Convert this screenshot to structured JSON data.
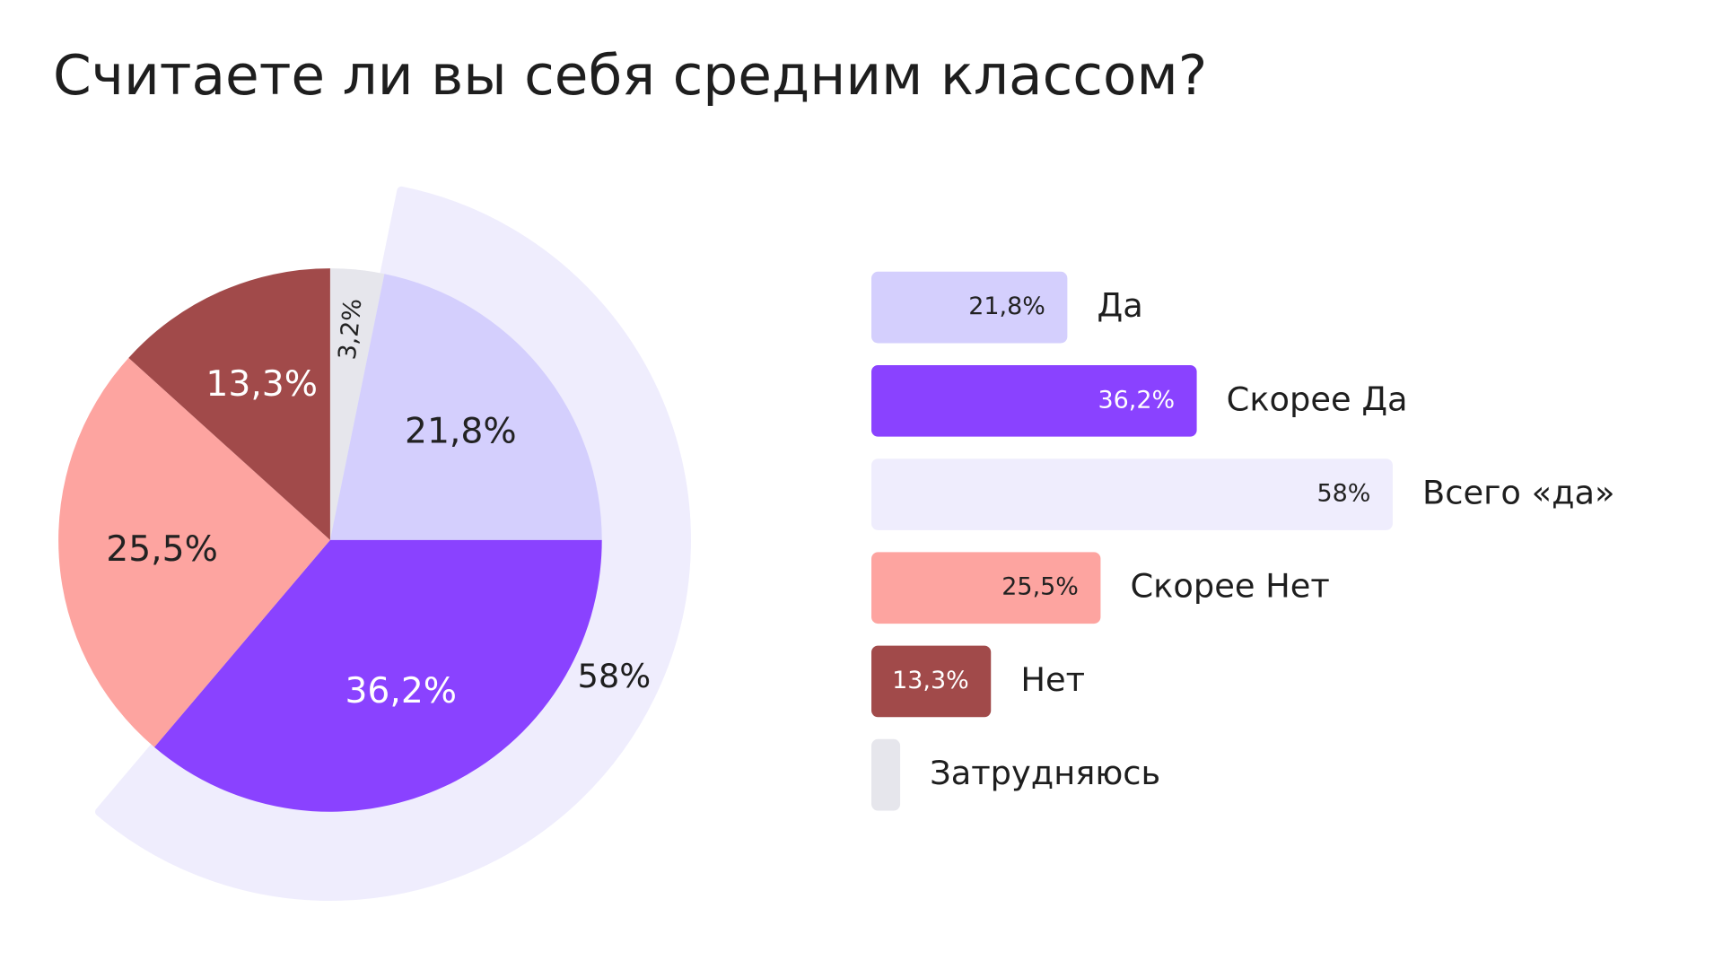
{
  "title": "Считаете ли вы себя средним классом?",
  "chart_data": [
    {
      "type": "pie",
      "values": [
        3.2,
        21.8,
        36.2,
        25.5,
        13.3
      ],
      "value_labels": [
        "3,2%",
        "21,8%",
        "36,2%",
        "25,5%",
        "13,3%"
      ],
      "colors": [
        "#e6e6ec",
        "#d4cffd",
        "#8a42ff",
        "#fda4a0",
        "#a14a4a"
      ],
      "label_colors": [
        "#222222",
        "#222222",
        "#ffffff",
        "#222222",
        "#ffffff"
      ],
      "ring": {
        "value": 58,
        "value_label": "58%",
        "color": "#efedfd"
      }
    },
    {
      "type": "bar",
      "categories": [
        "Да",
        "Скорее Да",
        "Всего «да»",
        "Скорее Нет",
        "Нет",
        "Затрудняюсь"
      ],
      "values": [
        21.8,
        36.2,
        58,
        25.5,
        13.3,
        3.2
      ],
      "value_labels": [
        "21,8%",
        "36,2%",
        "58%",
        "25,5%",
        "13,3%",
        null
      ],
      "colors": [
        "#d4cffd",
        "#8a42ff",
        "#efedfd",
        "#fda4a0",
        "#a14a4a",
        "#e6e6ec"
      ],
      "label_colors": [
        "#222222",
        "#ffffff",
        "#222222",
        "#222222",
        "#ffffff",
        null
      ]
    }
  ]
}
